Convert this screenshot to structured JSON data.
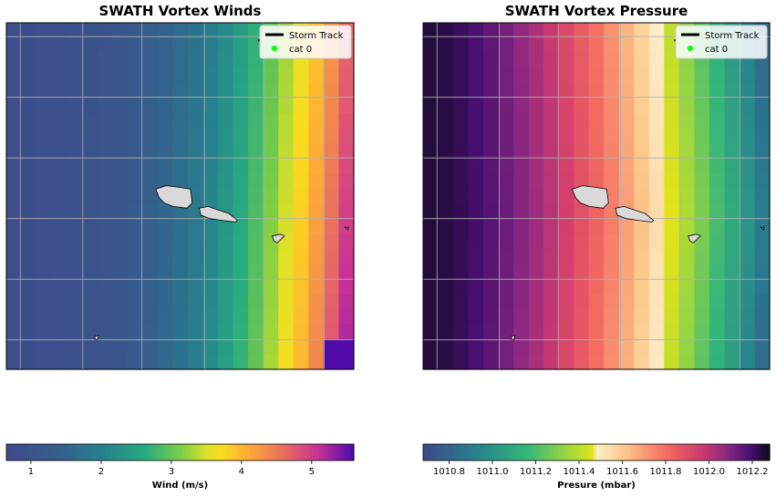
{
  "chart_data": [
    {
      "type": "heatmap",
      "title": "SWATH Vortex Winds",
      "colormap": "plasma_r",
      "value_range": [
        0.65,
        5.6
      ],
      "grid": true,
      "legend": {
        "placement": "top-right",
        "entries": [
          {
            "label": "Storm Track",
            "marker": "line",
            "color": "#000000"
          },
          {
            "label": "cat 0",
            "marker": "dot",
            "color": "#00ff00"
          }
        ]
      },
      "colorbar": {
        "label": "Wind (m/s)",
        "ticks": [
          "1",
          "2",
          "3",
          "4",
          "5"
        ],
        "tick_values": [
          1,
          2,
          3,
          4,
          5
        ]
      },
      "field": {
        "rows": 23,
        "cols": 23,
        "description_values": {
          "left_edge_min": 0.7,
          "right_edge_max": 5.6
        }
      }
    },
    {
      "type": "heatmap",
      "title": "SWATH Vortex Pressure",
      "colormap": "custom_pressure",
      "value_range": [
        1010.68,
        1012.28
      ],
      "grid": true,
      "legend": {
        "placement": "top-right",
        "entries": [
          {
            "label": "Storm Track",
            "marker": "line",
            "color": "#000000"
          },
          {
            "label": "cat 0",
            "marker": "dot",
            "color": "#00ff00"
          }
        ]
      },
      "colorbar": {
        "label": "Presure (mbar)",
        "ticks": [
          "1010.8",
          "1011.0",
          "1011.2",
          "1011.4",
          "1011.6",
          "1011.8",
          "1012.0",
          "1012.2"
        ],
        "tick_values": [
          1010.8,
          1011.0,
          1011.2,
          1011.4,
          1011.6,
          1011.8,
          1012.0,
          1012.2
        ]
      },
      "field": {
        "rows": 23,
        "cols": 23,
        "description_values": {
          "left_edge": 1012.25,
          "right_edge": 1010.9
        }
      }
    }
  ],
  "colors": {
    "land_fill": "#d9d9d9",
    "land_edge": "#000000",
    "grid": "#b0b0b0",
    "legend_track": "#000000",
    "legend_cat0": "#00ff00"
  }
}
